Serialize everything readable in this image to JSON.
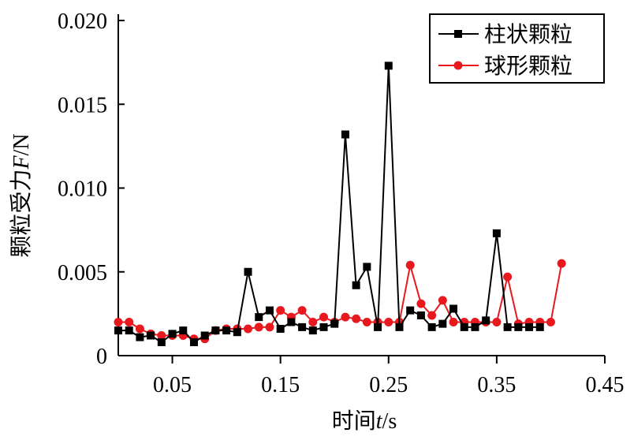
{
  "chart_data": {
    "type": "line",
    "xlabel": "时间",
    "xlabel_var": "t",
    "xlabel_unit": "/s",
    "ylabel": "颗粒受力",
    "ylabel_var": "F",
    "ylabel_unit": "/N",
    "xlim": [
      0.0,
      0.45
    ],
    "ylim": [
      0,
      0.02
    ],
    "x_ticks": [
      0.05,
      0.15,
      0.25,
      0.35,
      0.45
    ],
    "x_tick_labels": [
      "0.05",
      "0.15",
      "0.25",
      "0.35",
      "0.45"
    ],
    "y_ticks": [
      0,
      0.005,
      0.01,
      0.015,
      0.02
    ],
    "y_tick_labels": [
      "0",
      "0.005",
      "0.010",
      "0.015",
      "0.020"
    ],
    "grid": false,
    "legend_position": "top-right",
    "series": [
      {
        "name": "柱状颗粒",
        "color": "#000000",
        "marker": "square",
        "x": [
          0.0,
          0.01,
          0.02,
          0.03,
          0.04,
          0.05,
          0.06,
          0.07,
          0.08,
          0.09,
          0.1,
          0.11,
          0.12,
          0.13,
          0.14,
          0.15,
          0.16,
          0.17,
          0.18,
          0.19,
          0.2,
          0.21,
          0.22,
          0.23,
          0.24,
          0.25,
          0.26,
          0.27,
          0.28,
          0.29,
          0.3,
          0.31,
          0.32,
          0.33,
          0.34,
          0.35,
          0.36,
          0.37,
          0.38,
          0.39
        ],
        "y": [
          0.0015,
          0.0015,
          0.0011,
          0.0012,
          0.0008,
          0.0013,
          0.0015,
          0.0008,
          0.0012,
          0.0015,
          0.0015,
          0.0014,
          0.005,
          0.0023,
          0.0027,
          0.0016,
          0.002,
          0.0017,
          0.0015,
          0.0017,
          0.0019,
          0.0132,
          0.0042,
          0.0053,
          0.0017,
          0.0173,
          0.0017,
          0.0027,
          0.0024,
          0.0017,
          0.0019,
          0.0028,
          0.0017,
          0.0017,
          0.0021,
          0.0073,
          0.0017,
          0.0017,
          0.0017,
          0.0017
        ]
      },
      {
        "name": "球形颗粒",
        "color": "#e8191e",
        "marker": "circle",
        "x": [
          0.0,
          0.01,
          0.02,
          0.03,
          0.04,
          0.05,
          0.06,
          0.07,
          0.08,
          0.09,
          0.1,
          0.11,
          0.12,
          0.13,
          0.14,
          0.15,
          0.16,
          0.17,
          0.18,
          0.19,
          0.2,
          0.21,
          0.22,
          0.23,
          0.24,
          0.25,
          0.26,
          0.27,
          0.28,
          0.29,
          0.3,
          0.31,
          0.32,
          0.33,
          0.34,
          0.35,
          0.36,
          0.37,
          0.38,
          0.39,
          0.4,
          0.41
        ],
        "y": [
          0.002,
          0.002,
          0.0016,
          0.0013,
          0.0012,
          0.0012,
          0.0012,
          0.001,
          0.001,
          0.0015,
          0.0016,
          0.0016,
          0.0016,
          0.0017,
          0.0017,
          0.0027,
          0.0023,
          0.0027,
          0.002,
          0.0023,
          0.002,
          0.0023,
          0.0022,
          0.002,
          0.002,
          0.002,
          0.002,
          0.0054,
          0.0031,
          0.0024,
          0.0033,
          0.002,
          0.002,
          0.002,
          0.002,
          0.002,
          0.0047,
          0.0019,
          0.002,
          0.002,
          0.002,
          0.0055
        ]
      }
    ]
  }
}
